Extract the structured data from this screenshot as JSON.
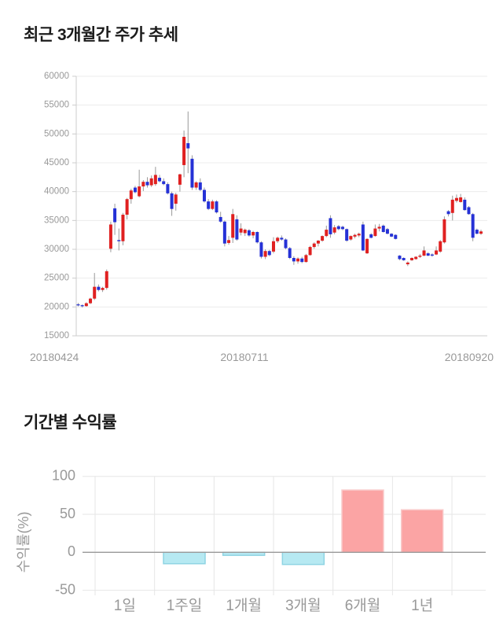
{
  "section1": {
    "title": "최근 3개월간 주가 추세"
  },
  "section2": {
    "title": "기간별 수익률"
  },
  "chart_data": [
    {
      "type": "candlestick",
      "title": "최근 3개월간 주가 추세",
      "ylim": [
        15000,
        60000
      ],
      "y_ticks": [
        60000,
        55000,
        50000,
        45000,
        40000,
        35000,
        30000,
        25000,
        20000,
        15000
      ],
      "x_tick_labels": [
        "20180424",
        "20180711",
        "20180920"
      ],
      "x_tick_indices": [
        0,
        41,
        99
      ],
      "grid": true,
      "legend": "none",
      "colors": {
        "up": "#e02020",
        "down": "#2531d6",
        "wick": "#999999",
        "grid": "#ececec",
        "axis": "#cccccc",
        "tick_text": "#999999"
      },
      "candles": [
        [
          20450,
          20700,
          20100,
          20300
        ],
        [
          20300,
          20450,
          19900,
          20150
        ],
        [
          20150,
          20800,
          20050,
          20650
        ],
        [
          20650,
          21600,
          20500,
          21450
        ],
        [
          21450,
          25900,
          21200,
          23500
        ],
        [
          23500,
          23900,
          22700,
          22950
        ],
        [
          22950,
          23500,
          22600,
          23300
        ],
        [
          23300,
          26500,
          23000,
          26200
        ],
        [
          30100,
          34800,
          29500,
          34300
        ],
        [
          37100,
          37900,
          32500,
          34700
        ],
        [
          31600,
          33600,
          29800,
          31400
        ],
        [
          31400,
          36300,
          30700,
          36000
        ],
        [
          36000,
          38900,
          35200,
          38700
        ],
        [
          38700,
          40500,
          37900,
          40200
        ],
        [
          40700,
          41000,
          39700,
          39900
        ],
        [
          39200,
          43800,
          39000,
          40900
        ],
        [
          40900,
          42000,
          40100,
          41700
        ],
        [
          41700,
          42500,
          40700,
          41100
        ],
        [
          41100,
          42800,
          40800,
          42300
        ],
        [
          41300,
          44300,
          41000,
          42900
        ],
        [
          42400,
          42900,
          41600,
          41800
        ],
        [
          41800,
          42300,
          41100,
          41300
        ],
        [
          41300,
          41600,
          39500,
          39700
        ],
        [
          39700,
          40000,
          35800,
          37000
        ],
        [
          37900,
          39800,
          36700,
          39500
        ],
        [
          41200,
          43100,
          40000,
          43000
        ],
        [
          44600,
          50600,
          42500,
          49500
        ],
        [
          48400,
          53900,
          43200,
          47500
        ],
        [
          45700,
          46300,
          40300,
          40700
        ],
        [
          40700,
          41800,
          40300,
          41600
        ],
        [
          41600,
          42300,
          40100,
          40300
        ],
        [
          40300,
          40700,
          38100,
          38300
        ],
        [
          38300,
          38700,
          36800,
          37000
        ],
        [
          37000,
          38600,
          36800,
          38300
        ],
        [
          38300,
          38500,
          36200,
          36400
        ],
        [
          35600,
          36500,
          34600,
          34800
        ],
        [
          34800,
          35000,
          30500,
          31000
        ],
        [
          31100,
          32300,
          30800,
          31600
        ],
        [
          32000,
          37000,
          31100,
          36100
        ],
        [
          35200,
          35900,
          31500,
          31700
        ],
        [
          32900,
          34500,
          32400,
          33600
        ],
        [
          32800,
          33600,
          32300,
          33400
        ],
        [
          33300,
          33500,
          32200,
          32400
        ],
        [
          32400,
          33200,
          31900,
          33000
        ],
        [
          33000,
          33100,
          31000,
          31200
        ],
        [
          31200,
          31400,
          28400,
          28700
        ],
        [
          28700,
          30000,
          28300,
          29700
        ],
        [
          29700,
          29900,
          28800,
          29000
        ],
        [
          29600,
          32100,
          29300,
          31400
        ],
        [
          31400,
          32200,
          31100,
          32000
        ],
        [
          32000,
          32400,
          31500,
          31700
        ],
        [
          31700,
          31900,
          30000,
          30200
        ],
        [
          30200,
          30400,
          28300,
          28500
        ],
        [
          28500,
          28800,
          27300,
          27900
        ],
        [
          27900,
          28600,
          27500,
          28400
        ],
        [
          28400,
          28700,
          27600,
          27800
        ],
        [
          27800,
          29200,
          27700,
          29000
        ],
        [
          29000,
          30600,
          28900,
          30400
        ],
        [
          30400,
          31200,
          30100,
          31000
        ],
        [
          31000,
          31600,
          30500,
          31500
        ],
        [
          31500,
          32400,
          31300,
          32300
        ],
        [
          32300,
          34100,
          32100,
          33400
        ],
        [
          35400,
          35900,
          32000,
          32600
        ],
        [
          32900,
          34200,
          32600,
          33800
        ],
        [
          34000,
          34200,
          33300,
          33500
        ],
        [
          33900,
          34100,
          33300,
          33500
        ],
        [
          33500,
          33600,
          31300,
          31500
        ],
        [
          31700,
          32400,
          31500,
          32300
        ],
        [
          32200,
          32700,
          31900,
          32500
        ],
        [
          32400,
          32900,
          32100,
          32700
        ],
        [
          34300,
          34800,
          29700,
          29800
        ],
        [
          29300,
          31900,
          29200,
          31800
        ],
        [
          32600,
          32800,
          31900,
          32000
        ],
        [
          32300,
          34300,
          32200,
          33600
        ],
        [
          33600,
          34400,
          33100,
          33900
        ],
        [
          34100,
          34300,
          32900,
          33000
        ],
        [
          33500,
          33700,
          32600,
          32700
        ],
        [
          32700,
          32800,
          32100,
          32200
        ],
        [
          32500,
          32600,
          31700,
          31800
        ],
        [
          28900,
          29000,
          28100,
          28300
        ],
        [
          28500,
          28600,
          28000,
          28100
        ],
        [
          27400,
          27900,
          27100,
          27700
        ],
        [
          28100,
          28600,
          28000,
          28500
        ],
        [
          28300,
          28800,
          28200,
          28700
        ],
        [
          28700,
          29200,
          28500,
          28900
        ],
        [
          28900,
          30500,
          28800,
          29800
        ],
        [
          29300,
          29500,
          28800,
          28900
        ],
        [
          29100,
          29300,
          28700,
          28900
        ],
        [
          29100,
          30500,
          29000,
          29800
        ],
        [
          29600,
          31600,
          29400,
          31400
        ],
        [
          31200,
          35700,
          31000,
          35200
        ],
        [
          36600,
          36800,
          35700,
          36100
        ],
        [
          36300,
          39300,
          35000,
          38600
        ],
        [
          38400,
          39500,
          38100,
          38900
        ],
        [
          38200,
          39600,
          38100,
          39000
        ],
        [
          38600,
          39000,
          36700,
          36800
        ],
        [
          37300,
          37500,
          36000,
          36100
        ],
        [
          36100,
          36300,
          31400,
          32000
        ],
        [
          33400,
          33600,
          32600,
          32700
        ],
        [
          32700,
          33400,
          32500,
          33100
        ]
      ]
    },
    {
      "type": "bar",
      "title": "기간별 수익률",
      "ylabel": "수익률(%)",
      "ylim": [
        -50,
        100
      ],
      "y_ticks": [
        100,
        50,
        0,
        -50
      ],
      "grid": true,
      "legend": "none",
      "categories": [
        "1일",
        "1주일",
        "1개월",
        "3개월",
        "6개월",
        "1년"
      ],
      "values": [
        0,
        -15,
        -4,
        -16,
        82,
        56
      ],
      "colors": {
        "positive": "#fba4a4",
        "positive_border": "#f9caca",
        "negative": "#b6e9f2",
        "negative_border": "#8fd4e3",
        "grid": "#e6e6e6",
        "zero_axis": "#999999",
        "tick_text": "#999999"
      }
    }
  ]
}
